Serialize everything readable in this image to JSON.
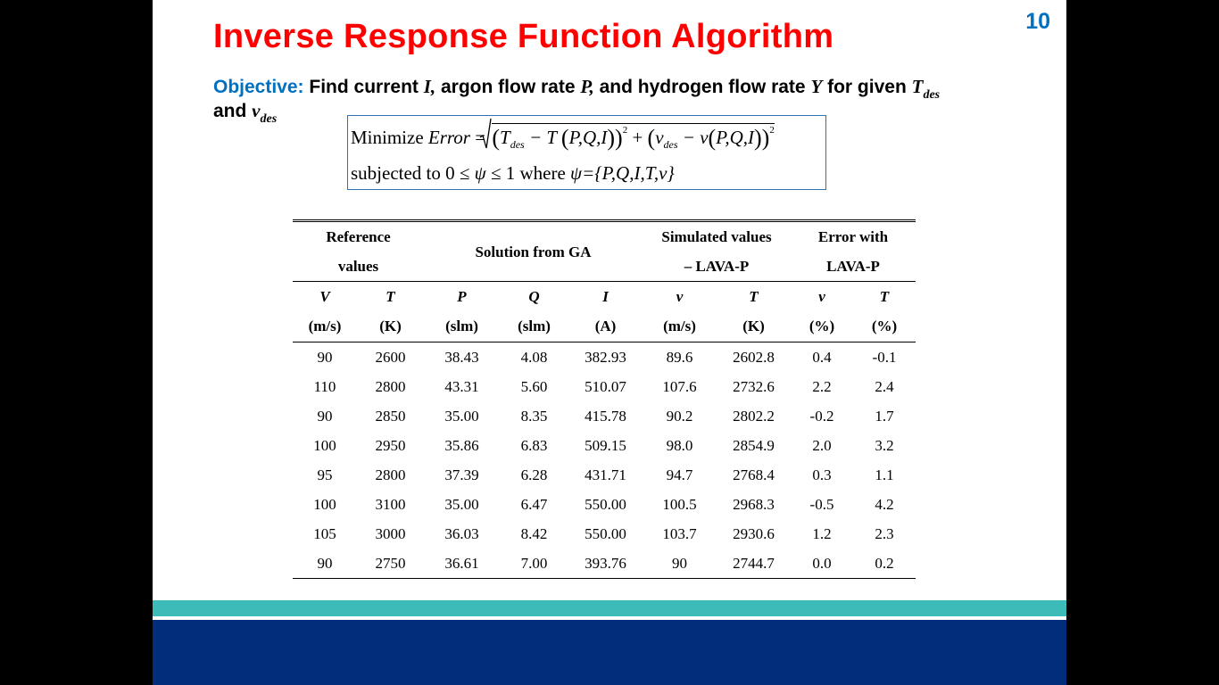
{
  "page_number": "10",
  "title": "Inverse Response Function Algorithm",
  "objective": {
    "label": "Objective:",
    "text1": " Find current ",
    "var_I": "I,",
    "text2": " argon flow rate ",
    "var_P": "P,",
    "text3": " and hydrogen flow rate ",
    "var_Y": "Y",
    "text4": " for given ",
    "var_T": "T",
    "sub_des1": "des",
    "text5": "and ",
    "var_v": "v",
    "sub_des2": "des"
  },
  "formula": {
    "minimize": "Minimize",
    "error": "Error",
    "eq": " = ",
    "T": "T",
    "des": "des",
    "minus_T": " − T ",
    "args": "P,Q,I",
    "plus": " + ",
    "v": "v",
    "minus_v": " − v",
    "sq": "2",
    "subjected": "subjected to  0 ≤ ",
    "psi": "ψ",
    "le1": " ≤ 1 where ",
    "psi2": "ψ",
    "set": "={P,Q,I,T,v}"
  },
  "table": {
    "groups": [
      "Reference values",
      "Solution from GA",
      "Simulated values – LAVA-P",
      "Error with LAVA-P"
    ],
    "group_lines": {
      "ref1": "Reference",
      "ref2": "values",
      "ga": "Solution from GA",
      "sim1": "Simulated values",
      "sim2": "– LAVA-P",
      "err1": "Error with",
      "err2": "LAVA-P"
    },
    "vars": [
      "V",
      "T",
      "P",
      "Q",
      "I",
      "v",
      "T",
      "v",
      "T"
    ],
    "units": [
      "(m/s)",
      "(K)",
      "(slm)",
      "(slm)",
      "(A)",
      "(m/s)",
      "(K)",
      "(%)",
      "(%)"
    ],
    "rows": [
      [
        "90",
        "2600",
        "38.43",
        "4.08",
        "382.93",
        "89.6",
        "2602.8",
        "0.4",
        "-0.1"
      ],
      [
        "110",
        "2800",
        "43.31",
        "5.60",
        "510.07",
        "107.6",
        "2732.6",
        "2.2",
        "2.4"
      ],
      [
        "90",
        "2850",
        "35.00",
        "8.35",
        "415.78",
        "90.2",
        "2802.2",
        "-0.2",
        "1.7"
      ],
      [
        "100",
        "2950",
        "35.86",
        "6.83",
        "509.15",
        "98.0",
        "2854.9",
        "2.0",
        "3.2"
      ],
      [
        "95",
        "2800",
        "37.39",
        "6.28",
        "431.71",
        "94.7",
        "2768.4",
        "0.3",
        "1.1"
      ],
      [
        "100",
        "3100",
        "35.00",
        "6.47",
        "550.00",
        "100.5",
        "2968.3",
        "-0.5",
        "4.2"
      ],
      [
        "105",
        "3000",
        "36.03",
        "8.42",
        "550.00",
        "103.7",
        "2930.6",
        "1.2",
        "2.3"
      ],
      [
        "90",
        "2750",
        "36.61",
        "7.00",
        "393.76",
        "90",
        "2744.7",
        "0.0",
        "0.2"
      ]
    ]
  },
  "colors": {
    "title": "#ff0000",
    "accent_blue": "#0070c0",
    "footer_teal": "#3dbbb8",
    "footer_navy": "#012d7b"
  }
}
